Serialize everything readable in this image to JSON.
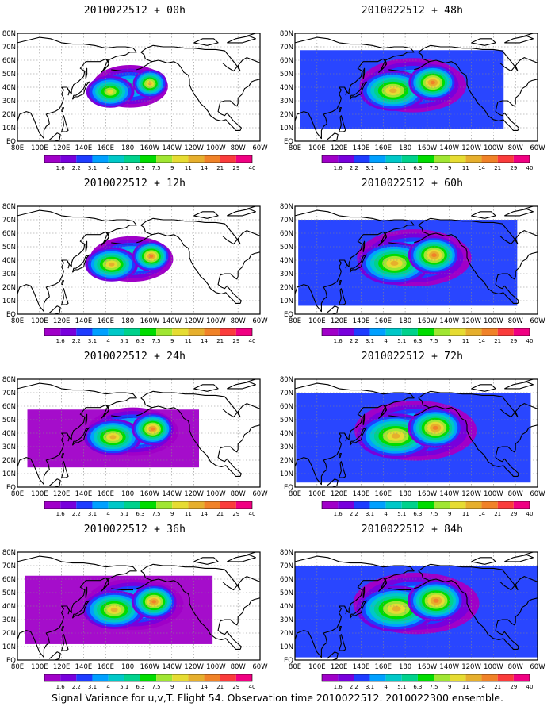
{
  "figure": {
    "caption": "Signal Variance for u,v,T. Flight 54. Observation time 2010022512. 2010022300 ensemble."
  },
  "axes": {
    "x_ticks": [
      "80E",
      "100E",
      "120E",
      "140E",
      "160E",
      "180",
      "160W",
      "140W",
      "120W",
      "100W",
      "80W",
      "60W"
    ],
    "y_ticks": [
      "EQ",
      "10N",
      "20N",
      "30N",
      "40N",
      "50N",
      "60N",
      "70N",
      "80N"
    ]
  },
  "colorbar": {
    "levels": [
      "1.6",
      "2.2",
      "3.1",
      "4",
      "5.1",
      "6.3",
      "7.5",
      "9",
      "11",
      "14",
      "21",
      "29",
      "40"
    ],
    "colors": [
      "#a000c8",
      "#7800dc",
      "#1e3cff",
      "#00a0ff",
      "#00c8c8",
      "#00d28c",
      "#00dc00",
      "#a0e632",
      "#e6dc32",
      "#e6af2d",
      "#f08228",
      "#fa3c3c",
      "#f00082"
    ]
  },
  "panels": [
    {
      "title": "2010022512 + 00h",
      "intensity": 0.3,
      "extent": 0.35
    },
    {
      "title": "2010022512 + 48h",
      "intensity": 0.55,
      "extent": 0.75
    },
    {
      "title": "2010022512 + 12h",
      "intensity": 0.42,
      "extent": 0.45
    },
    {
      "title": "2010022512 + 60h",
      "intensity": 0.55,
      "extent": 0.85
    },
    {
      "title": "2010022512 + 24h",
      "intensity": 0.55,
      "extent": 0.55
    },
    {
      "title": "2010022512 + 72h",
      "intensity": 0.52,
      "extent": 0.95
    },
    {
      "title": "2010022512 + 36h",
      "intensity": 0.58,
      "extent": 0.65
    },
    {
      "title": "2010022512 + 84h",
      "intensity": 0.55,
      "extent": 1.0
    }
  ]
}
